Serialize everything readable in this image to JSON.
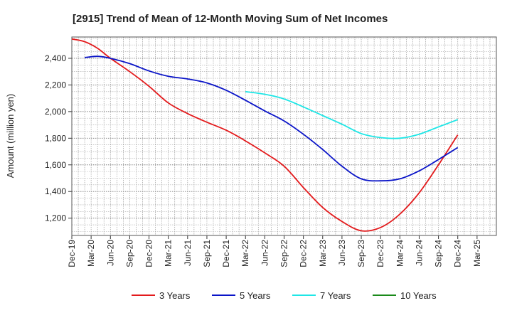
{
  "chart_data": {
    "type": "line",
    "title": "[2915]  Trend of Mean of 12-Month Moving Sum of Net Incomes",
    "xlabel": "",
    "ylabel": "Amount (million yen)",
    "ylim": [
      1070,
      2560
    ],
    "yticks": [
      1200,
      1400,
      1600,
      1800,
      2000,
      2200,
      2400
    ],
    "ytick_labels": [
      "1,200",
      "1,400",
      "1,600",
      "1,800",
      "2,000",
      "2,200",
      "2,400"
    ],
    "xlim": [
      0,
      66
    ],
    "x_tick_labels": [
      "Dec-19",
      "Mar-20",
      "Jun-20",
      "Sep-20",
      "Dec-20",
      "Mar-21",
      "Jun-21",
      "Sep-21",
      "Dec-21",
      "Mar-22",
      "Jun-22",
      "Sep-22",
      "Dec-22",
      "Mar-23",
      "Jun-23",
      "Sep-23",
      "Dec-23",
      "Mar-24",
      "Jun-24",
      "Sep-24",
      "Dec-24",
      "Mar-25"
    ],
    "grid": true,
    "legend_position": "bottom",
    "series": [
      {
        "name": "3 Years",
        "color": "#e31a1c",
        "points": [
          [
            0,
            2545
          ],
          [
            2,
            2525
          ],
          [
            4,
            2475
          ],
          [
            6,
            2400
          ],
          [
            9,
            2300
          ],
          [
            12,
            2190
          ],
          [
            15,
            2065
          ],
          [
            18,
            1985
          ],
          [
            21,
            1920
          ],
          [
            24,
            1860
          ],
          [
            27,
            1780
          ],
          [
            30,
            1690
          ],
          [
            33,
            1590
          ],
          [
            36,
            1430
          ],
          [
            39,
            1280
          ],
          [
            42,
            1175
          ],
          [
            45,
            1105
          ],
          [
            48,
            1130
          ],
          [
            51,
            1230
          ],
          [
            54,
            1390
          ],
          [
            57,
            1600
          ],
          [
            60,
            1825
          ]
        ]
      },
      {
        "name": "5 Years",
        "color": "#0a14c8",
        "points": [
          [
            2,
            2405
          ],
          [
            4,
            2415
          ],
          [
            6,
            2400
          ],
          [
            9,
            2360
          ],
          [
            12,
            2305
          ],
          [
            15,
            2265
          ],
          [
            18,
            2245
          ],
          [
            21,
            2215
          ],
          [
            24,
            2160
          ],
          [
            27,
            2085
          ],
          [
            30,
            2005
          ],
          [
            33,
            1930
          ],
          [
            36,
            1830
          ],
          [
            39,
            1715
          ],
          [
            42,
            1590
          ],
          [
            45,
            1495
          ],
          [
            48,
            1480
          ],
          [
            51,
            1495
          ],
          [
            54,
            1555
          ],
          [
            57,
            1640
          ],
          [
            60,
            1730
          ]
        ]
      },
      {
        "name": "7 Years",
        "color": "#1ee6e6",
        "points": [
          [
            27,
            2150
          ],
          [
            30,
            2130
          ],
          [
            33,
            2095
          ],
          [
            36,
            2035
          ],
          [
            39,
            1970
          ],
          [
            42,
            1905
          ],
          [
            45,
            1835
          ],
          [
            48,
            1805
          ],
          [
            51,
            1800
          ],
          [
            54,
            1830
          ],
          [
            57,
            1885
          ],
          [
            60,
            1940
          ]
        ]
      },
      {
        "name": "10 Years",
        "color": "#1a8a1a",
        "points": []
      }
    ]
  }
}
